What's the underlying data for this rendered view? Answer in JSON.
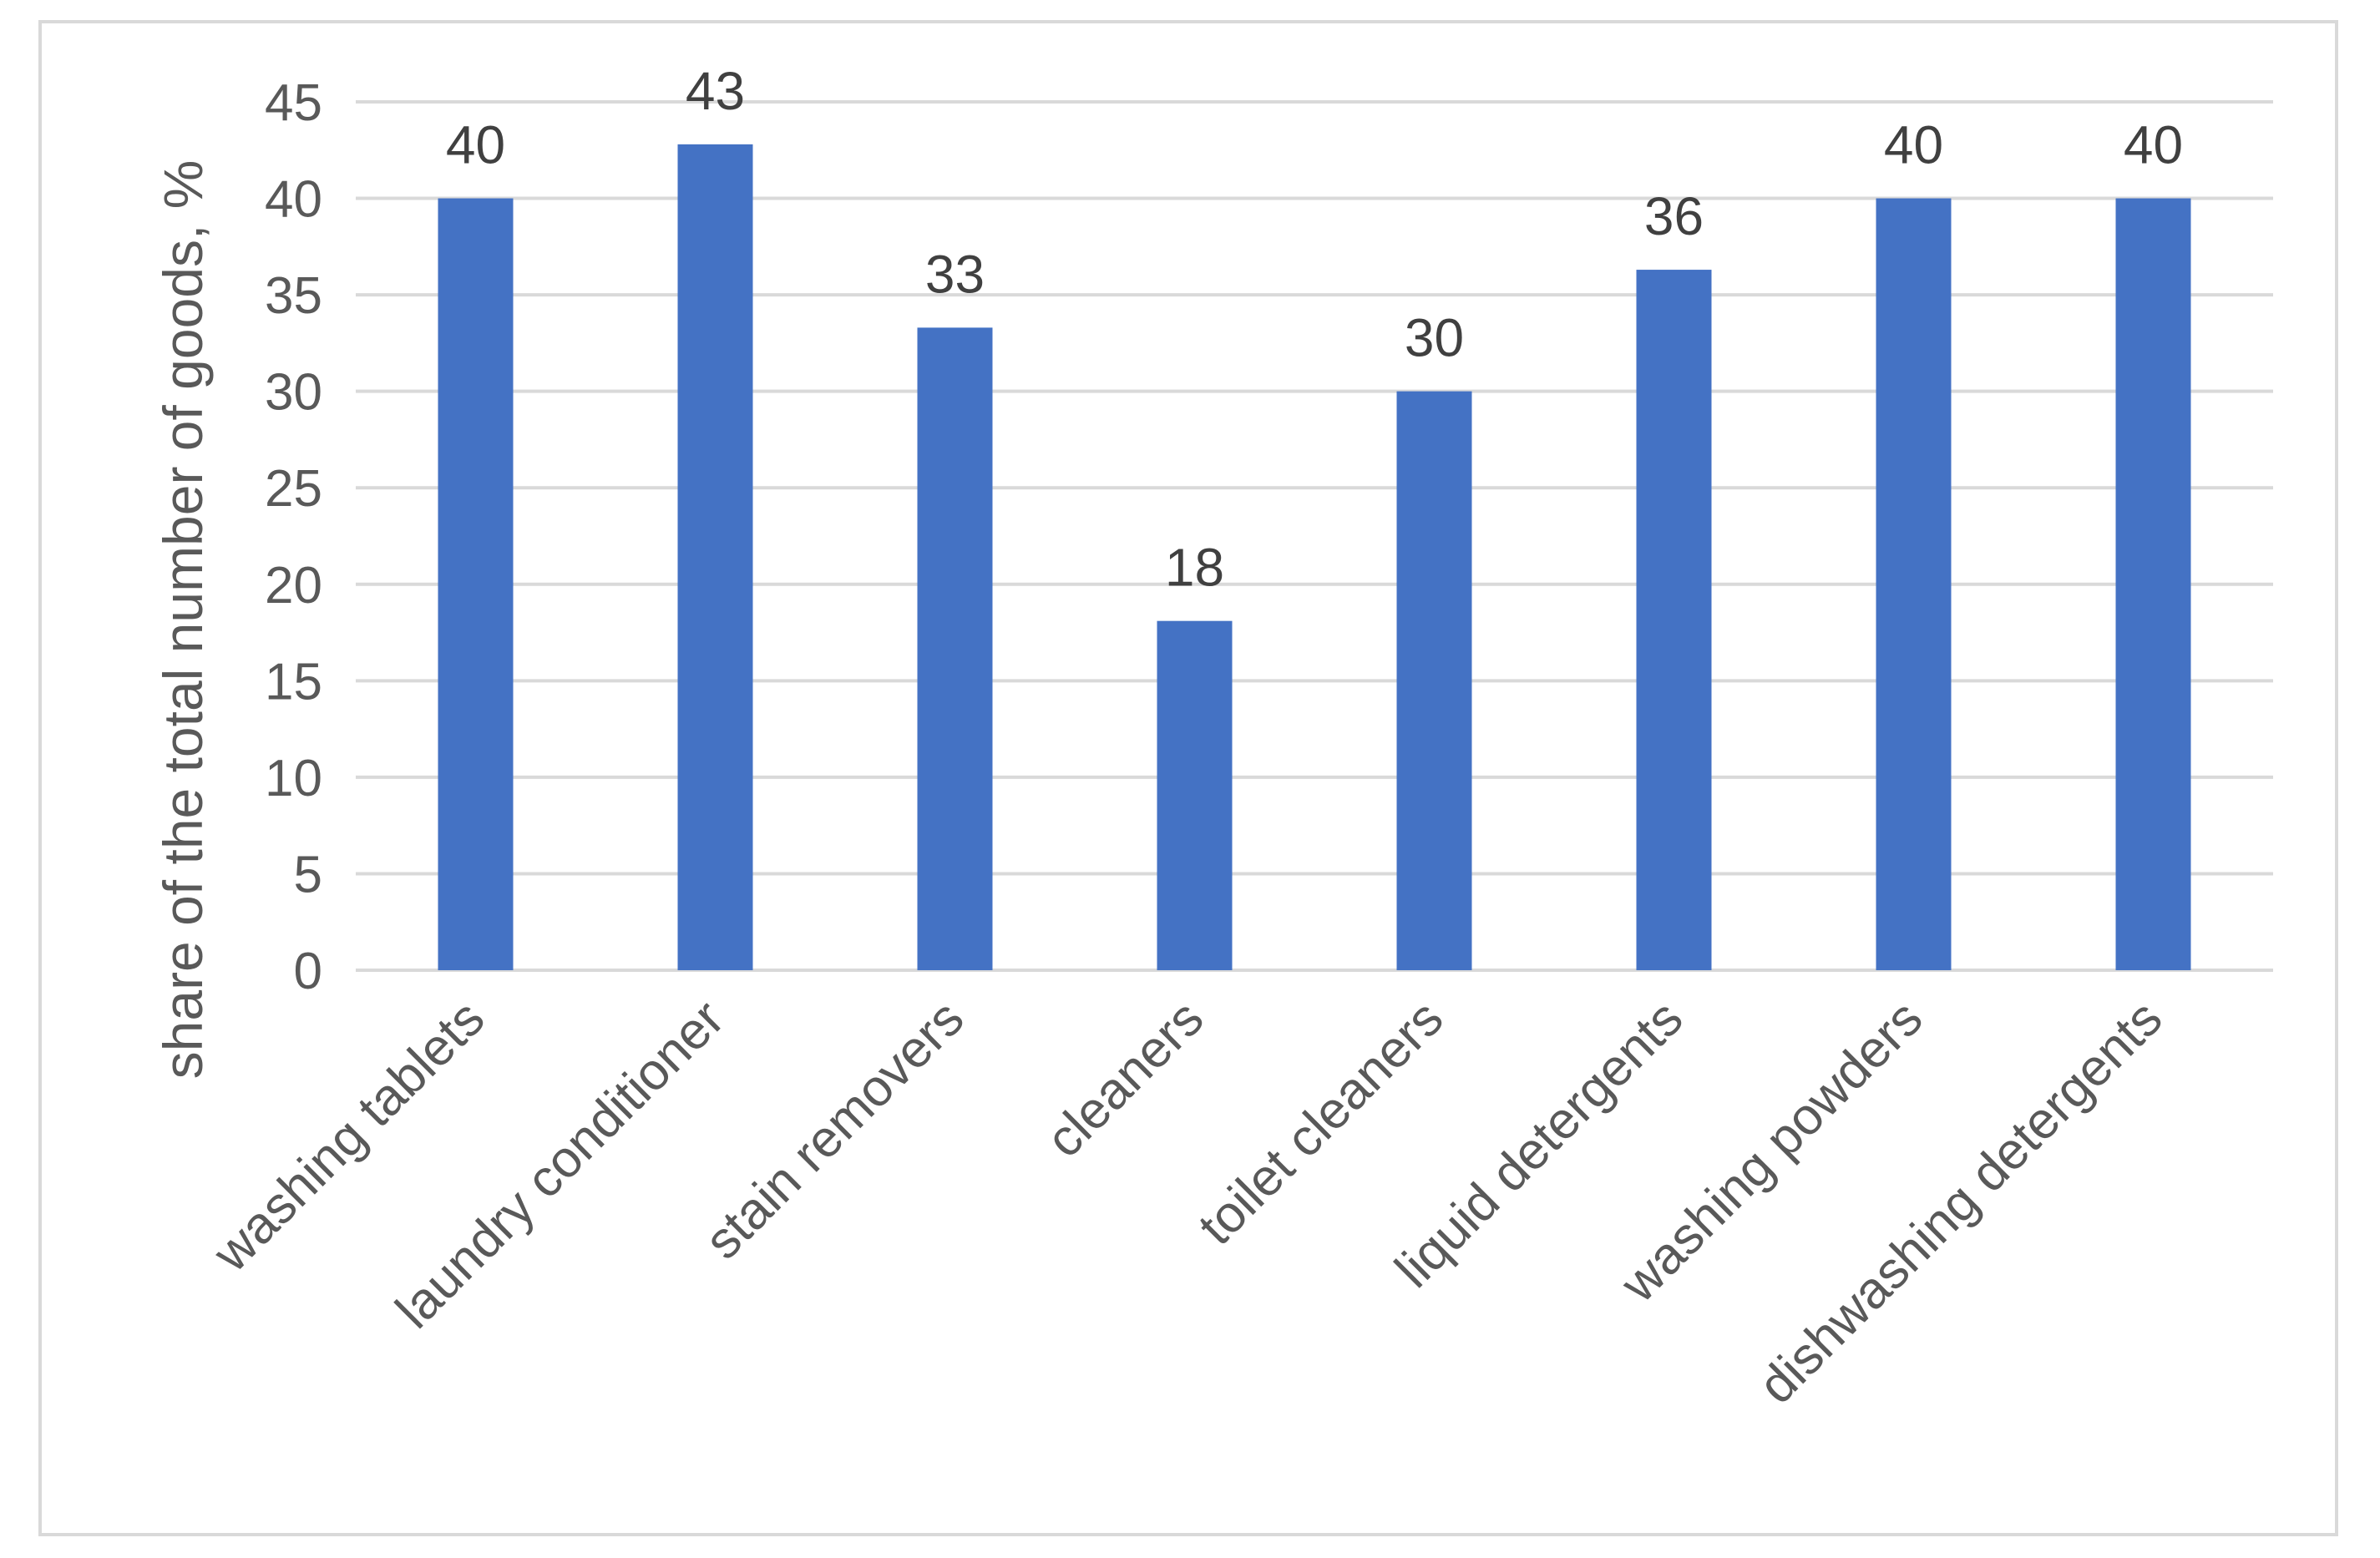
{
  "chart_data": {
    "type": "bar",
    "title": "",
    "xlabel": "",
    "ylabel": "share of the total number of goods, %",
    "categories": [
      "washing tablets",
      "laundry conditioner",
      "stain removers",
      "cleaners",
      "toilet cleaners",
      "liquid detergents",
      "washing powders",
      "dishwashing detergents"
    ],
    "values": [
      40,
      42.8,
      33.3,
      18.1,
      30,
      36.3,
      40,
      40
    ],
    "data_labels": [
      "40",
      "43",
      "33",
      "18",
      "30",
      "36",
      "40",
      "40"
    ],
    "ylim": [
      0,
      45
    ],
    "yticks": [
      0,
      5,
      10,
      15,
      20,
      25,
      30,
      35,
      40,
      45
    ],
    "grid": true,
    "legend": "none",
    "colors": {
      "bar": "#4472c4",
      "grid": "#d9d9d9",
      "frame": "#d9d9d9",
      "tick_text": "#595959",
      "data_label_text": "#404040"
    }
  }
}
